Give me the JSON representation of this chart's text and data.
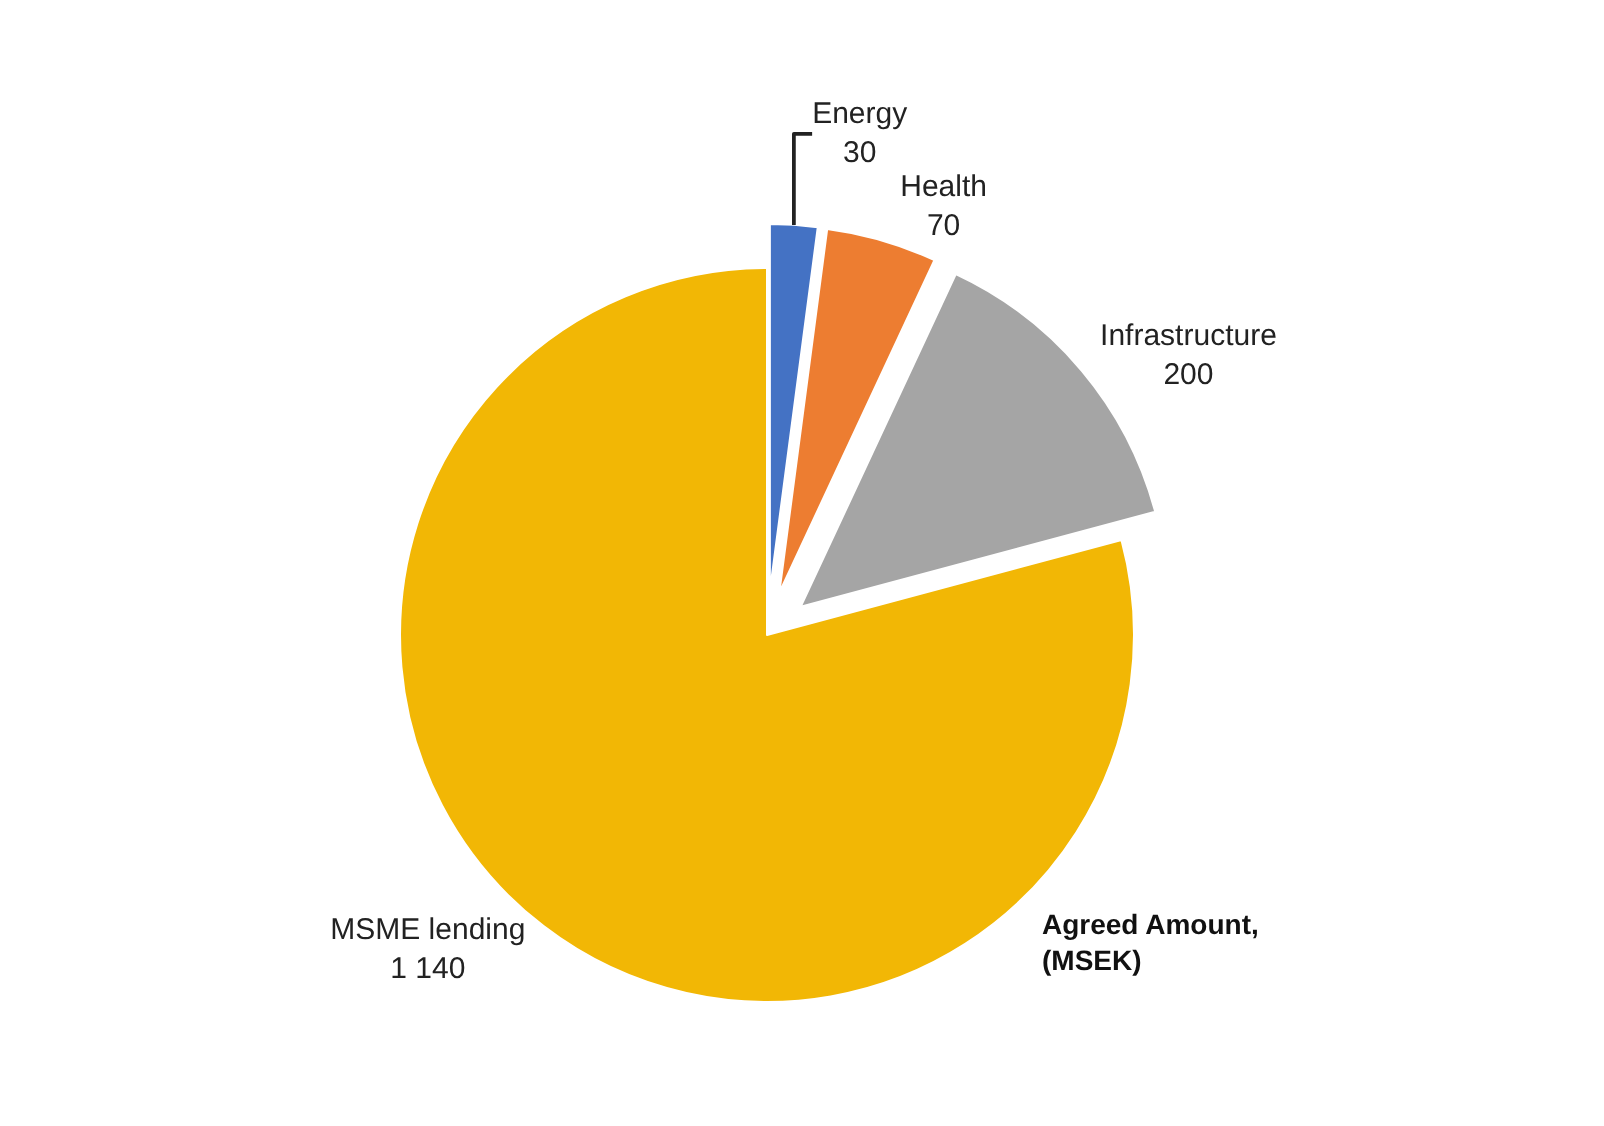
{
  "chart_data": {
    "type": "pie",
    "categories": [
      "Energy",
      "Health",
      "Infrastructure",
      "MSME lending"
    ],
    "values": [
      30,
      70,
      200,
      1140
    ],
    "value_labels": [
      "30",
      "70",
      "200",
      "1 140"
    ],
    "colors": [
      "#4472c4",
      "#ed7d31",
      "#a5a5a5",
      "#f2b705"
    ],
    "annotations": [
      "Agreed Amount,\n(MSEK)"
    ],
    "legend": false
  }
}
